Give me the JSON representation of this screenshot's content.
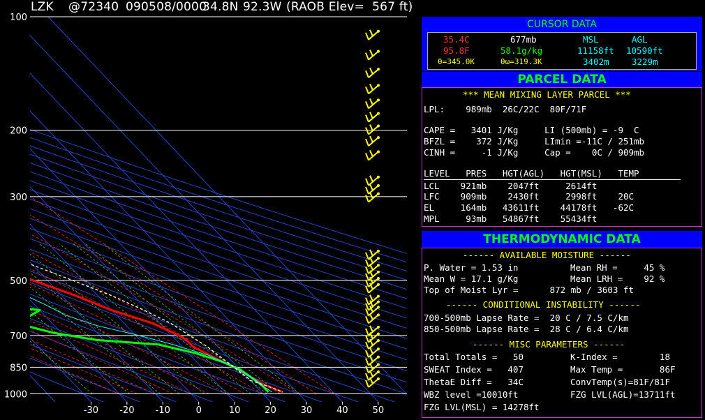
{
  "header": {
    "station": "LZK",
    "station_id": "@72340",
    "datetime": "090508/0000",
    "lat": "34.8N",
    "lon": "92.3W",
    "elev": "(RAOB Elev=  567 ft)"
  },
  "chart_data": {
    "type": "skew-t",
    "pressure_levels": [
      100,
      200,
      300,
      500,
      700,
      850,
      1000
    ],
    "pressure_labels": [
      "100",
      "200",
      "300",
      "500",
      "700",
      "850",
      "1000"
    ],
    "temp_ticks": [
      -30,
      -20,
      -10,
      0,
      10,
      20,
      30,
      40,
      50
    ],
    "temp_tick_labels": [
      "-30",
      "-20",
      "-10",
      "0",
      "10",
      "20",
      "30",
      "40",
      "50"
    ],
    "xlim": [
      -47,
      58
    ],
    "ylim": [
      100,
      1050
    ],
    "series": [
      {
        "key": "temperature",
        "color": "#ff0000",
        "points": [
          [
            100,
            -66
          ],
          [
            110,
            -64
          ],
          [
            120,
            -62
          ],
          [
            135,
            -61
          ],
          [
            150,
            -60
          ],
          [
            170,
            -59
          ],
          [
            190,
            -59
          ],
          [
            200,
            -58
          ],
          [
            230,
            -55
          ],
          [
            250,
            -53
          ],
          [
            270,
            -49
          ],
          [
            300,
            -44
          ],
          [
            350,
            -36
          ],
          [
            400,
            -29
          ],
          [
            450,
            -22
          ],
          [
            500,
            -14
          ],
          [
            550,
            -6
          ],
          [
            600,
            0
          ],
          [
            650,
            8
          ],
          [
            700,
            12
          ],
          [
            720,
            13
          ],
          [
            750,
            13
          ],
          [
            800,
            16
          ],
          [
            850,
            19
          ],
          [
            900,
            21
          ],
          [
            950,
            23
          ],
          [
            989,
            26
          ]
        ]
      },
      {
        "key": "dewpoint",
        "color": "#00ff00",
        "points": [
          [
            520,
            -72
          ],
          [
            530,
            -60
          ],
          [
            550,
            -56
          ],
          [
            580,
            -32
          ],
          [
            600,
            -20
          ],
          [
            630,
            -26
          ],
          [
            660,
            -28
          ],
          [
            690,
            -22
          ],
          [
            720,
            -12
          ],
          [
            740,
            4
          ],
          [
            780,
            12
          ],
          [
            820,
            17
          ],
          [
            860,
            20
          ],
          [
            900,
            21
          ],
          [
            950,
            22
          ],
          [
            989,
            22
          ]
        ]
      },
      {
        "key": "wetbulb",
        "color": "#00ffff",
        "points": [
          [
            530,
            -22
          ],
          [
            580,
            -17
          ],
          [
            620,
            -14
          ],
          [
            660,
            -8
          ],
          [
            700,
            1
          ],
          [
            740,
            8
          ],
          [
            790,
            15
          ],
          [
            850,
            19
          ],
          [
            900,
            21
          ],
          [
            950,
            22
          ],
          [
            989,
            23
          ]
        ]
      },
      {
        "key": "parcel",
        "color": "#ffffff",
        "points": [
          [
            100,
            -116
          ],
          [
            150,
            -99
          ],
          [
            200,
            -80
          ],
          [
            250,
            -64
          ],
          [
            300,
            -48
          ],
          [
            350,
            -34
          ],
          [
            400,
            -22
          ],
          [
            450,
            -11
          ],
          [
            500,
            -3
          ],
          [
            550,
            4
          ],
          [
            600,
            9
          ],
          [
            650,
            13
          ],
          [
            700,
            15
          ],
          [
            750,
            17
          ],
          [
            800,
            18
          ],
          [
            850,
            19
          ],
          [
            909,
            20
          ],
          [
            921,
            20
          ],
          [
            950,
            23
          ],
          [
            989,
            26
          ]
        ]
      }
    ],
    "wind_barbs_pressures": [
      100,
      115,
      130,
      145,
      160,
      175,
      190,
      205,
      220,
      240,
      280,
      295,
      310,
      440,
      460,
      480,
      500,
      520,
      540,
      580,
      600,
      620,
      650,
      700,
      730,
      760,
      800,
      840,
      880,
      920,
      960
    ]
  },
  "cursor": {
    "title": "CURSOR DATA",
    "temp_c": "35.4C",
    "pres": "677mb",
    "msl_hdr": "MSL",
    "agl_hdr": "AGL",
    "temp_f": "95.8F",
    "mix": "58.1g/kg",
    "msl_ft": "11158ft",
    "agl_ft": "10590ft",
    "theta": "θ=345.0K",
    "theta_w": "θω=319.3K",
    "msl_m": "3402m",
    "agl_m": "3229m"
  },
  "parcel": {
    "title": "PARCEL DATA",
    "banner": "*** MEAN MIXING LAYER PARCEL ***",
    "lpl": "LPL:    989mb  26C/22C  80F/71F",
    "row1": "CAPE =   3401 J/Kg     LI (500mb) = -9  C",
    "row2": "BFZL =    372 J/Kg     LImin =-11C / 251mb",
    "row3": "CINH =     -1 J/Kg     Cap =    0C / 909mb",
    "table_header": "LEVEL   PRES   HGT(AGL)   HGT(MSL)   TEMP",
    "table_rows": [
      "LCL    921mb    2047ft     2614ft",
      "LFC    909mb    2430ft     2998ft    20C",
      "EL     164mb   43611ft    44178ft   -62C",
      "MPL     93mb   54867ft    55434ft"
    ]
  },
  "thermo": {
    "title": "THERMODYNAMIC DATA",
    "avail_moisture": "------ AVAILABLE MOISTURE ------",
    "pw": "P. Water = 1.53 in",
    "mean_rh": "Mean RH =     45 %",
    "mean_w": "Mean W = 17.1 g/Kg",
    "mean_lrh": "Mean LRH =    92 %",
    "top_moist": "Top of Moist Lyr =      872 mb / 3603 ft",
    "cond_instab": "------ CONDITIONAL INSTABILITY ------",
    "lapse1": "700-500mb Lapse Rate =  20 C / 7.5 C/km",
    "lapse2": "850-500mb Lapse Rate =  28 C / 6.4 C/km",
    "misc": "------ MISC PARAMETERS ------",
    "totals": "Total Totals =   50",
    "kindex": "K-Index =        18",
    "sweat": "SWEAT Index =   407",
    "maxtemp": "Max Temp =       86F",
    "thetae": "ThetaE Diff =   34C",
    "convtemp": "ConvTemp(s)=81F/81F",
    "wbz": "WBZ level =10010ft",
    "fzgagl": "FZG LVL(AGL)=13711ft",
    "fzgmsl": "FZG LVL(MSL) = 14278ft"
  }
}
